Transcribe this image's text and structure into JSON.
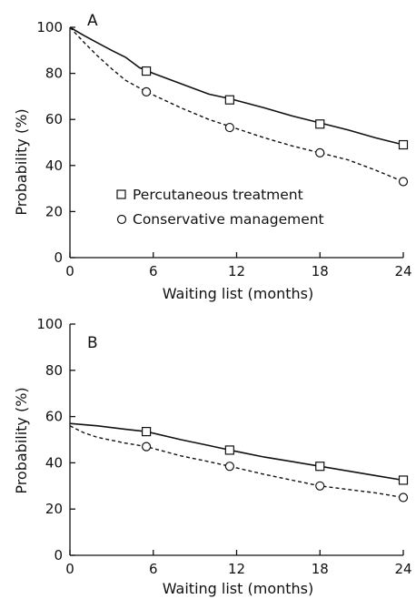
{
  "chart_data": [
    {
      "type": "line",
      "panel": "A",
      "xlabel": "Waiting list (months)",
      "ylabel": "Probability (%)",
      "xlim": [
        0,
        24
      ],
      "ylim": [
        0,
        100
      ],
      "xticks": [
        "0",
        "6",
        "12",
        "18",
        "24"
      ],
      "yticks": [
        "0",
        "20",
        "40",
        "60",
        "80",
        "100"
      ],
      "legend": {
        "placement": "center-left",
        "entries": [
          "Percutaneous treatment",
          "Conservative management"
        ]
      },
      "series": [
        {
          "name": "Percutaneous treatment",
          "style": "solid",
          "marker": "square",
          "curve": [
            [
              0,
              100
            ],
            [
              1,
              96.5
            ],
            [
              2,
              93.2
            ],
            [
              3,
              90
            ],
            [
              4,
              87
            ],
            [
              5,
              82.5
            ],
            [
              6,
              80
            ],
            [
              8,
              75.5
            ],
            [
              10,
              71
            ],
            [
              11.5,
              69
            ],
            [
              14,
              65
            ],
            [
              16,
              61.5
            ],
            [
              18,
              58.5
            ],
            [
              20,
              55.5
            ],
            [
              22,
              52
            ],
            [
              24,
              49
            ]
          ],
          "markers": [
            [
              5.5,
              81
            ],
            [
              11.5,
              68.5
            ],
            [
              18,
              58
            ],
            [
              24,
              49
            ]
          ]
        },
        {
          "name": "Conservative management",
          "style": "dashed",
          "marker": "circle",
          "curve": [
            [
              0,
              100
            ],
            [
              1,
              93.5
            ],
            [
              2,
              87.5
            ],
            [
              3,
              82
            ],
            [
              4,
              77
            ],
            [
              5.5,
              72
            ],
            [
              8,
              65
            ],
            [
              10,
              60
            ],
            [
              11.5,
              57
            ],
            [
              14,
              52
            ],
            [
              16,
              48.5
            ],
            [
              18,
              45.5
            ],
            [
              20,
              42.5
            ],
            [
              22,
              38
            ],
            [
              24,
              33
            ]
          ],
          "markers": [
            [
              5.5,
              72
            ],
            [
              11.5,
              56.5
            ],
            [
              18,
              45.5
            ],
            [
              24,
              33
            ]
          ]
        }
      ]
    },
    {
      "type": "line",
      "panel": "B",
      "xlabel": "Waiting list (months)",
      "ylabel": "Probability (%)",
      "xlim": [
        0,
        24
      ],
      "ylim": [
        0,
        100
      ],
      "xticks": [
        "0",
        "6",
        "12",
        "18",
        "24"
      ],
      "yticks": [
        "0",
        "20",
        "40",
        "60",
        "80",
        "100"
      ],
      "series": [
        {
          "name": "Percutaneous treatment",
          "style": "solid",
          "marker": "square",
          "curve": [
            [
              0,
              57
            ],
            [
              2,
              56
            ],
            [
              4,
              54.5
            ],
            [
              5.5,
              53.5
            ],
            [
              8,
              50
            ],
            [
              10,
              47.5
            ],
            [
              11.5,
              45.5
            ],
            [
              14,
              42.5
            ],
            [
              16,
              40.5
            ],
            [
              18,
              38.5
            ],
            [
              20,
              36.5
            ],
            [
              22,
              34.5
            ],
            [
              24,
              32.5
            ]
          ],
          "markers": [
            [
              5.5,
              53.5
            ],
            [
              11.5,
              45.5
            ],
            [
              18,
              38.5
            ],
            [
              24,
              32.5
            ]
          ]
        },
        {
          "name": "Conservative management",
          "style": "dashed",
          "marker": "circle",
          "curve": [
            [
              0,
              56
            ],
            [
              1,
              53
            ],
            [
              2,
              51
            ],
            [
              4,
              48.5
            ],
            [
              5.5,
              47
            ],
            [
              8,
              43
            ],
            [
              10,
              40.5
            ],
            [
              11.5,
              38.5
            ],
            [
              14,
              35
            ],
            [
              16,
              32.5
            ],
            [
              18,
              30
            ],
            [
              20,
              28.5
            ],
            [
              22,
              27
            ],
            [
              24,
              25
            ]
          ],
          "markers": [
            [
              5.5,
              47
            ],
            [
              11.5,
              38.5
            ],
            [
              18,
              30
            ],
            [
              24,
              25
            ]
          ]
        }
      ]
    }
  ]
}
